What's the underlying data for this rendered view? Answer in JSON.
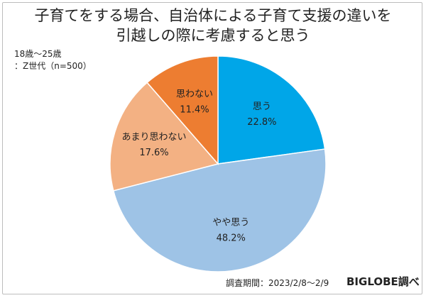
{
  "title": {
    "line1": "子育てをする場合、自治体による子育て支援の違いを",
    "line2": "引越しの際に考慮すると思う"
  },
  "note": {
    "line1": "18歳〜25歳",
    "line2": "：Z世代（n=500）"
  },
  "footer": {
    "period": "調査期間：2023/2/8〜2/9",
    "source": "BIGLOBE調べ"
  },
  "chart_data": {
    "type": "pie",
    "title": "子育てをする場合、自治体による子育て支援の違いを引越しの際に考慮すると思う",
    "unit": "%",
    "slices": [
      {
        "label": "思う",
        "value": 22.8,
        "display": "22.8%",
        "color": "#00a6e8"
      },
      {
        "label": "やや思う",
        "value": 48.2,
        "display": "48.2%",
        "color": "#9ec3e6"
      },
      {
        "label": "あまり思わない",
        "value": 17.6,
        "display": "17.6%",
        "color": "#f3b183"
      },
      {
        "label": "思わない",
        "value": 11.4,
        "display": "11.4%",
        "color": "#ed7d31"
      }
    ]
  }
}
